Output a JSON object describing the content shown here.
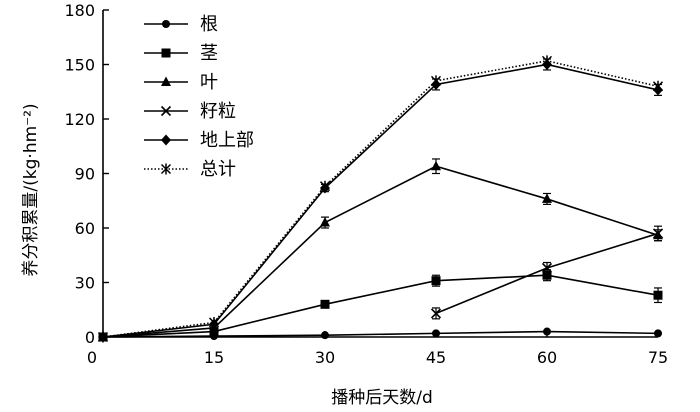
{
  "chart_data": {
    "type": "line",
    "xlabel": "播种后天数/d",
    "ylabel": "养分积累量/(kg·hm⁻²)",
    "xlim": [
      0,
      75
    ],
    "ylim": [
      0,
      180
    ],
    "xticks": [
      0,
      15,
      30,
      45,
      60,
      75
    ],
    "yticks": [
      0,
      30,
      60,
      90,
      120,
      150,
      180
    ],
    "legend_position": "top-left",
    "grid": false,
    "series": [
      {
        "name": "根",
        "marker": "circle",
        "line": "solid",
        "x": [
          0,
          15,
          30,
          45,
          60,
          75
        ],
        "y": [
          0,
          0.5,
          1,
          2,
          3,
          2
        ],
        "err": [
          0,
          0,
          0,
          0,
          0,
          0
        ]
      },
      {
        "name": "茎",
        "marker": "square",
        "line": "solid",
        "x": [
          0,
          15,
          30,
          45,
          60,
          75
        ],
        "y": [
          0,
          3,
          18,
          31,
          34,
          23
        ],
        "err": [
          0,
          0,
          2,
          3,
          3,
          4
        ]
      },
      {
        "name": "叶",
        "marker": "triangle",
        "line": "solid",
        "x": [
          0,
          15,
          30,
          45,
          60,
          75
        ],
        "y": [
          0,
          5,
          63,
          94,
          76,
          56
        ],
        "err": [
          0,
          0,
          3,
          4,
          3,
          3
        ]
      },
      {
        "name": "籽粒",
        "marker": "x",
        "line": "solid",
        "x": [
          45,
          60,
          75
        ],
        "y": [
          13,
          38,
          57
        ],
        "err": [
          3,
          3,
          4
        ]
      },
      {
        "name": "地上部",
        "marker": "diamond",
        "line": "solid",
        "x": [
          0,
          15,
          30,
          45,
          60,
          75
        ],
        "y": [
          0,
          7,
          82,
          139,
          150,
          136
        ],
        "err": [
          0,
          0,
          2,
          3,
          3,
          3
        ]
      },
      {
        "name": "总计",
        "marker": "star",
        "line": "dotted",
        "x": [
          0,
          15,
          30,
          45,
          60,
          75
        ],
        "y": [
          0,
          8,
          83,
          141,
          152,
          138
        ],
        "err": [
          0,
          0,
          0,
          0,
          0,
          0
        ]
      }
    ]
  }
}
